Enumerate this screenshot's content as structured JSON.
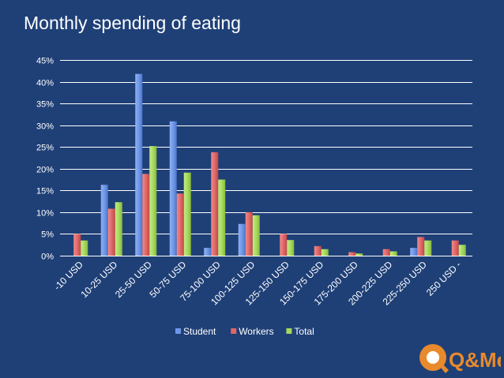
{
  "title": "Monthly spending of eating",
  "colors": {
    "background": "#1f4077",
    "student": "#6e96e8",
    "workers": "#e06666",
    "total": "#a6d85c",
    "logo_orange": "#e88a2c"
  },
  "logo": {
    "text": "Q&Me",
    "icon": "q-and-me-logo"
  },
  "chart_data": {
    "type": "bar",
    "title": "Monthly spending of eating",
    "xlabel": "",
    "ylabel": "",
    "ylim": [
      0,
      45
    ],
    "y_ticks": [
      0,
      5,
      10,
      15,
      20,
      25,
      30,
      35,
      40,
      45
    ],
    "y_tick_labels": [
      "0%",
      "5%",
      "10%",
      "15%",
      "20%",
      "25%",
      "30%",
      "35%",
      "40%",
      "45%"
    ],
    "grid": true,
    "legend_position": "bottom",
    "categories": [
      "-10 USD",
      "10-25 USD",
      "25-50 USD",
      "50-75 USD",
      "75-100 USD",
      "100-125 USD",
      "125-150 USD",
      "150-175 USD",
      "175-200 USD",
      "200-225 USD",
      "225-250 USD",
      "250 USD -"
    ],
    "series": [
      {
        "name": "Student",
        "values": [
          0,
          16.3,
          41.8,
          30.9,
          1.8,
          7.3,
          0,
          0,
          0,
          0,
          1.8,
          0
        ]
      },
      {
        "name": "Workers",
        "values": [
          5.0,
          10.8,
          18.8,
          14.3,
          23.8,
          10.0,
          5.0,
          2.2,
          0.8,
          1.5,
          4.3,
          3.5
        ]
      },
      {
        "name": "Total",
        "values": [
          3.5,
          12.3,
          25.2,
          19.1,
          17.5,
          9.3,
          3.6,
          1.5,
          0.5,
          1.0,
          3.5,
          2.5
        ]
      }
    ]
  }
}
